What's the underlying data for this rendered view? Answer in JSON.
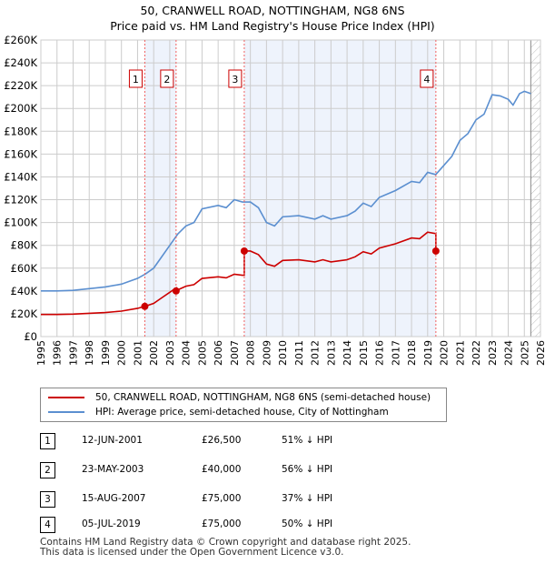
{
  "title_line1": "50, CRANWELL ROAD, NOTTINGHAM, NG8 6NS",
  "title_line2": "Price paid vs. HM Land Registry's House Price Index (HPI)",
  "chart_data": {
    "type": "line",
    "xlim": [
      1995,
      2026
    ],
    "ylim": [
      0,
      260000
    ],
    "yticks": [
      0,
      20000,
      40000,
      60000,
      80000,
      100000,
      120000,
      140000,
      160000,
      180000,
      200000,
      220000,
      240000,
      260000
    ],
    "ytick_labels": [
      "£0",
      "£20K",
      "£40K",
      "£60K",
      "£80K",
      "£100K",
      "£120K",
      "£140K",
      "£160K",
      "£180K",
      "£200K",
      "£220K",
      "£240K",
      "£260K"
    ],
    "xtick_labels": [
      "1995",
      "1996",
      "1997",
      "1998",
      "1999",
      "2000",
      "2001",
      "2002",
      "2003",
      "2004",
      "2005",
      "2006",
      "2007",
      "2008",
      "2009",
      "2010",
      "2011",
      "2012",
      "2013",
      "2014",
      "2015",
      "2016",
      "2017",
      "2018",
      "2019",
      "2020",
      "2021",
      "2022",
      "2023",
      "2024",
      "2025",
      "2026"
    ],
    "hpi": {
      "name": "HPI: Average price, semi-detached house, City of Nottingham",
      "color": "#5b8fd0",
      "x": [
        1995,
        1996,
        1997,
        1998,
        1999,
        2000,
        2001,
        2001.5,
        2002,
        2002.5,
        2003,
        2003.5,
        2004,
        2004.5,
        2005,
        2006,
        2006.5,
        2007,
        2007.5,
        2008,
        2008.5,
        2009,
        2009.5,
        2010,
        2011,
        2012,
        2012.5,
        2013,
        2014,
        2014.5,
        2015,
        2015.5,
        2016,
        2017,
        2018,
        2018.5,
        2019,
        2019.5,
        2020,
        2020.5,
        2021,
        2021.5,
        2022,
        2022.5,
        2023,
        2023.5,
        2024,
        2024.3,
        2024.7,
        2025,
        2025.4
      ],
      "y": [
        40000,
        40000,
        40500,
        42000,
        43500,
        46000,
        51000,
        55000,
        60000,
        70000,
        80000,
        90000,
        97000,
        100000,
        112000,
        115000,
        113000,
        120000,
        118000,
        118000,
        113000,
        100000,
        97000,
        105000,
        106000,
        103000,
        106000,
        103000,
        106000,
        110000,
        117000,
        114000,
        122000,
        128000,
        136000,
        135000,
        144000,
        142000,
        150000,
        158000,
        172000,
        178000,
        190000,
        195000,
        212000,
        211000,
        208000,
        203000,
        213000,
        215000,
        213000
      ]
    },
    "price_paid": {
      "name": "50, CRANWELL ROAD, NOTTINGHAM, NG8 6NS (semi-detached house)",
      "color": "#cc0000"
    },
    "sales": [
      {
        "n": "1",
        "t": 2001.45,
        "date": "12-JUN-2001",
        "price": 26500,
        "price_label": "£26,500",
        "hpi_label": "51% ↓ HPI"
      },
      {
        "n": "2",
        "t": 2003.39,
        "date": "23-MAY-2003",
        "price": 40000,
        "price_label": "£40,000",
        "hpi_label": "56% ↓ HPI"
      },
      {
        "n": "3",
        "t": 2007.62,
        "date": "15-AUG-2007",
        "price": 75000,
        "price_label": "£75,000",
        "hpi_label": "37% ↓ HPI"
      },
      {
        "n": "4",
        "t": 2019.51,
        "date": "05-JUL-2019",
        "price": 75000,
        "price_label": "£75,000",
        "hpi_label": "50% ↓ HPI"
      }
    ],
    "data_end": 2025.4
  },
  "footer_line1": "Contains HM Land Registry data © Crown copyright and database right 2025.",
  "footer_line2": "This data is licensed under the Open Government Licence v3.0."
}
